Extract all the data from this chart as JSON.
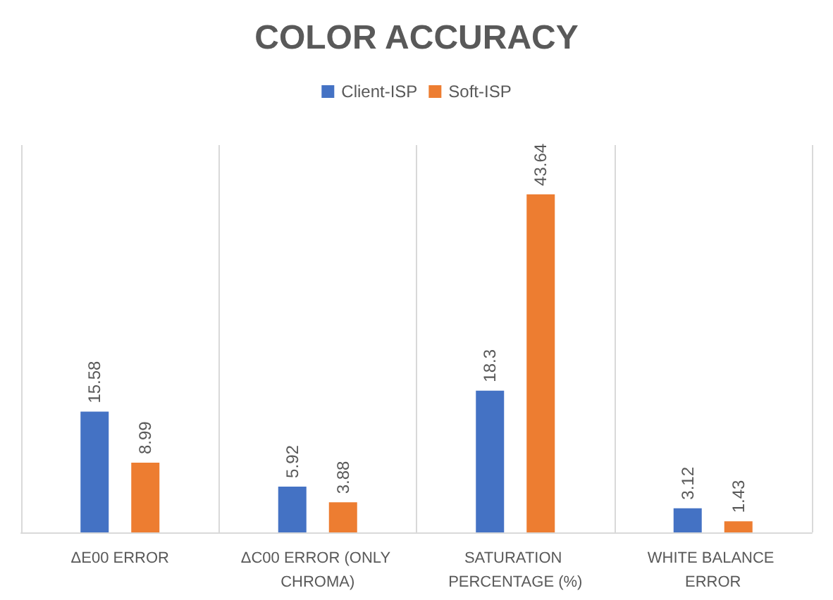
{
  "chart_data": {
    "type": "bar",
    "title": "COLOR ACCURACY",
    "categories": [
      "ΔE00 ERROR",
      "ΔC00 ERROR (ONLY CHROMA)",
      "SATURATION PERCENTAGE (%)",
      "WHITE BALANCE ERROR"
    ],
    "series": [
      {
        "name": "Client-ISP",
        "color": "#4472c4",
        "values": [
          15.58,
          5.92,
          18.3,
          3.12
        ]
      },
      {
        "name": "Soft-ISP",
        "color": "#ed7d31",
        "values": [
          8.99,
          3.88,
          43.64,
          1.43
        ]
      }
    ],
    "data_labels": true,
    "grid": "x",
    "legend": "top"
  }
}
